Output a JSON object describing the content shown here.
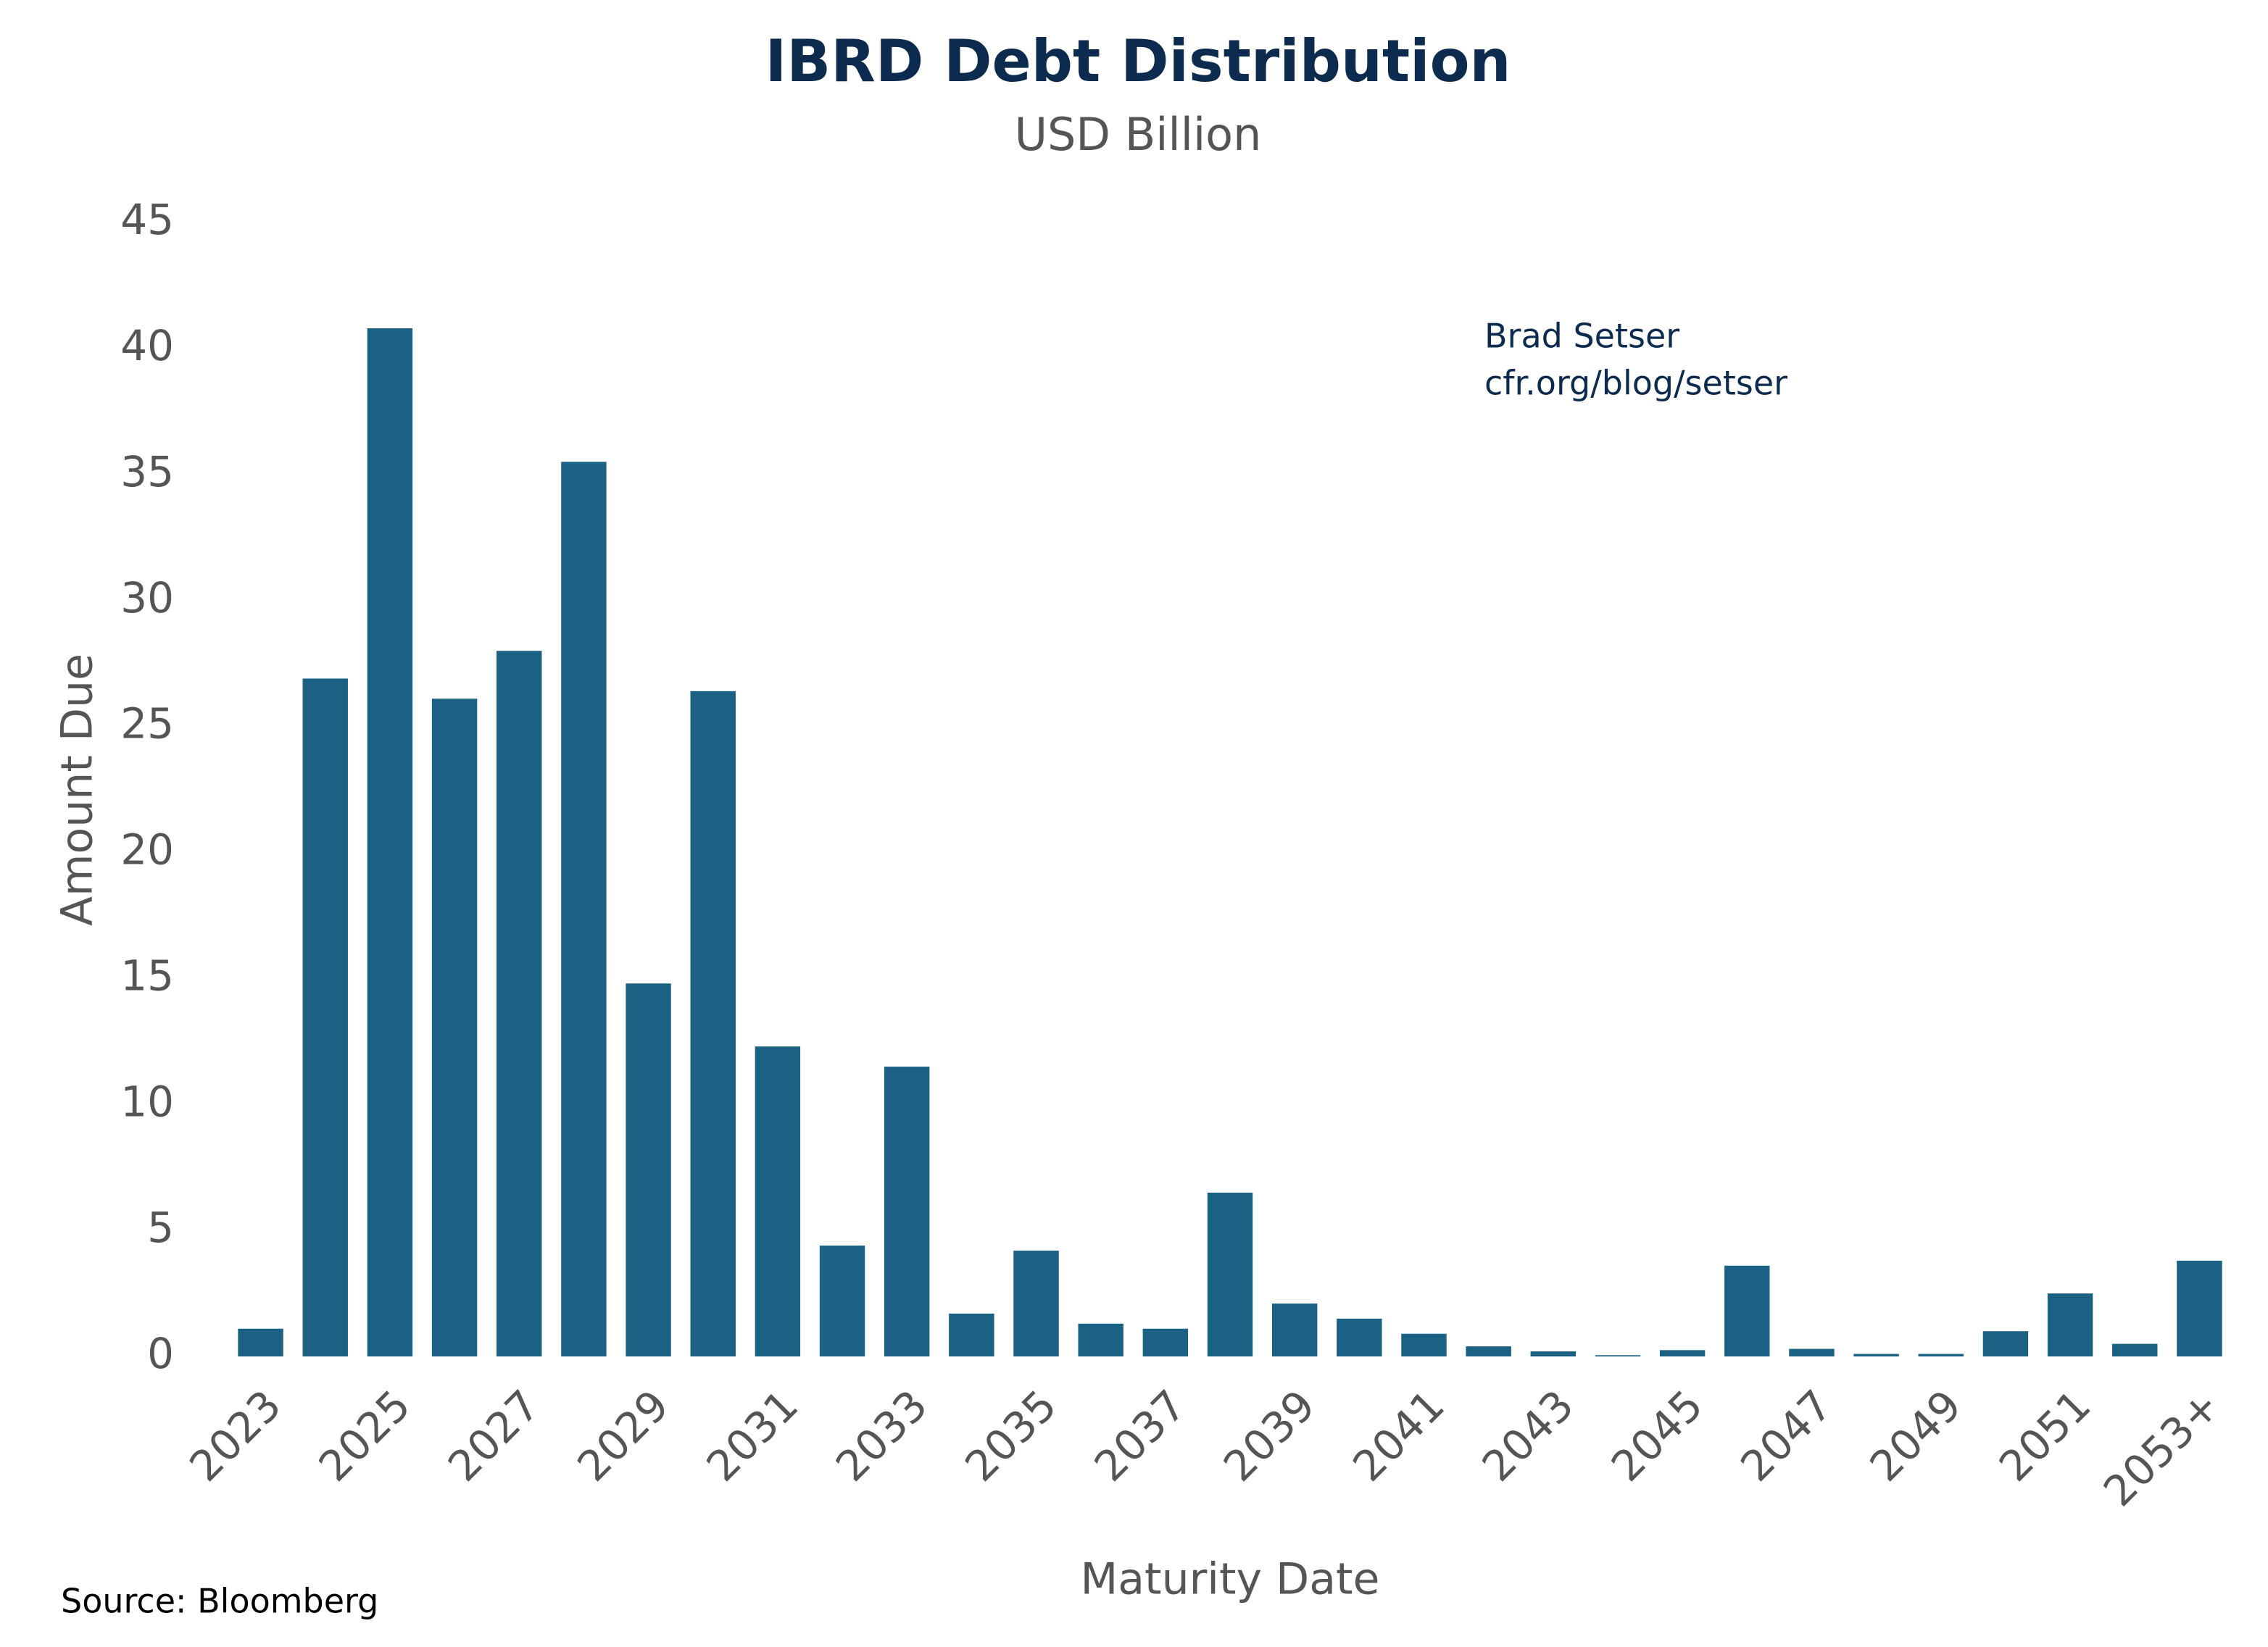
{
  "chart_data": {
    "type": "bar",
    "title": "IBRD Debt Distribution",
    "subtitle": "USD Billion",
    "x_label": "Maturity Date",
    "y_label": "Amount Due",
    "annotations": [
      "Brad Setser",
      "cfr.org/blog/setser"
    ],
    "source": "Source: Bloomberg",
    "categories": [
      "2023",
      null,
      "2025",
      null,
      "2027",
      null,
      "2029",
      null,
      "2031",
      null,
      "2033",
      null,
      "2035",
      null,
      "2037",
      null,
      "2039",
      null,
      "2041",
      null,
      "2043",
      null,
      "2045",
      null,
      "2047",
      null,
      "2049",
      null,
      "2051",
      null,
      "2053+"
    ],
    "values": [
      1.1,
      26.9,
      40.8,
      26.1,
      28.0,
      35.5,
      14.8,
      26.4,
      12.3,
      4.4,
      11.5,
      1.7,
      4.2,
      1.3,
      1.1,
      6.5,
      2.1,
      1.5,
      0.9,
      0.4,
      0.2,
      0.05,
      0.25,
      3.6,
      0.3,
      0.1,
      0.1,
      1.0,
      2.5,
      0.5,
      3.8
    ],
    "color": "#1a6184",
    "ylim": [
      0,
      45
    ],
    "yticks": [
      0,
      5,
      10,
      15,
      20,
      25,
      30,
      35,
      40,
      45
    ],
    "grid": false
  }
}
